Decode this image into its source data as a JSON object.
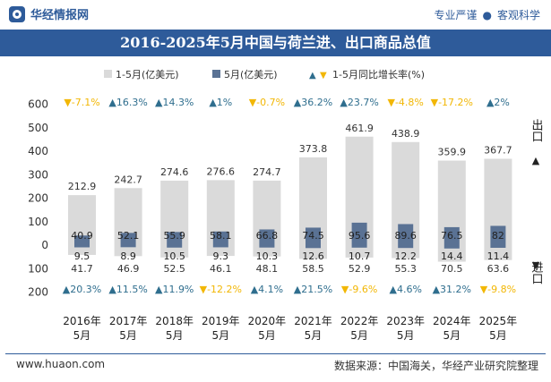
{
  "header": {
    "brand": "华经情报网",
    "slogan_a": "专业严谨",
    "slogan_sep": "●",
    "slogan_b": "客观科学"
  },
  "colors": {
    "brand_blue": "#2e5b9a",
    "cumulative_bar": "#dadada",
    "monthly_bar": "#5a7294",
    "up": "#2f6e8e",
    "down": "#f2b705"
  },
  "chart_data": {
    "type": "bar",
    "title": "2016-2025年5月中国与荷兰进、出口商品总值",
    "categories": [
      "2016年\n5月",
      "2017年\n5月",
      "2018年\n5月",
      "2019年\n5月",
      "2020年\n5月",
      "2021年\n5月",
      "2022年\n5月",
      "2023年\n5月",
      "2024年\n5月",
      "2025年\n5月"
    ],
    "legend": {
      "cumulative": "1-5月(亿美元)",
      "monthly": "5月(亿美元)",
      "growth": "1-5月同比增长率(%)"
    },
    "axis_labels": {
      "export": "出口",
      "import": "进口"
    },
    "y_ticks": [
      {
        "value": 600,
        "label": "600"
      },
      {
        "value": 500,
        "label": "500"
      },
      {
        "value": 400,
        "label": "400"
      },
      {
        "value": 300,
        "label": "300"
      },
      {
        "value": 200,
        "label": "200"
      },
      {
        "value": 100,
        "label": "100"
      },
      {
        "value": 0,
        "label": "0"
      },
      {
        "value": -100,
        "label": "100"
      },
      {
        "value": -200,
        "label": "200"
      }
    ],
    "ylim": [
      -200,
      600
    ],
    "series": [
      {
        "name": "出口 1-5月(亿美元)",
        "values": [
          212.9,
          242.7,
          274.6,
          276.6,
          274.7,
          373.8,
          461.9,
          438.9,
          359.9,
          367.7
        ]
      },
      {
        "name": "出口 5月(亿美元)",
        "values": [
          40.9,
          52.1,
          55.9,
          58.1,
          66.8,
          74.5,
          95.6,
          89.6,
          76.5,
          82
        ]
      },
      {
        "name": "进口 1-5月(亿美元)",
        "values": [
          41.7,
          46.9,
          52.5,
          46.1,
          48.1,
          58.5,
          52.9,
          55.3,
          70.5,
          63.6
        ]
      },
      {
        "name": "进口 5月(亿美元)",
        "values": [
          9.5,
          8.9,
          10.5,
          9.3,
          10.3,
          12.6,
          10.7,
          12.2,
          14.4,
          11.4
        ]
      },
      {
        "name": "出口 1-5月同比增长率(%)",
        "values": [
          -7.1,
          16.3,
          14.3,
          1,
          -0.7,
          36.2,
          23.7,
          -4.8,
          -17.2,
          2
        ]
      },
      {
        "name": "进口 1-5月同比增长率(%)",
        "values": [
          20.3,
          11.5,
          11.9,
          -12.2,
          4.1,
          21.5,
          -9.6,
          4.6,
          31.2,
          -9.8
        ]
      }
    ],
    "labels": {
      "export_total": [
        "212.9",
        "242.7",
        "274.6",
        "276.6",
        "274.7",
        "373.8",
        "461.9",
        "438.9",
        "359.9",
        "367.7"
      ],
      "export_month": [
        "40.9",
        "52.1",
        "55.9",
        "58.1",
        "66.8",
        "74.5",
        "95.6",
        "89.6",
        "76.5",
        "82"
      ],
      "import_total": [
        "41.7",
        "46.9",
        "52.5",
        "46.1",
        "48.1",
        "58.5",
        "52.9",
        "55.3",
        "70.5",
        "63.6"
      ],
      "import_month": [
        "9.5",
        "8.9",
        "10.5",
        "9.3",
        "10.3",
        "12.6",
        "10.7",
        "12.2",
        "14.4",
        "11.4"
      ],
      "export_growth": [
        "-7.1%",
        "16.3%",
        "14.3%",
        "1%",
        "-0.7%",
        "36.2%",
        "23.7%",
        "-4.8%",
        "-17.2%",
        "2%"
      ],
      "import_growth": [
        "20.3%",
        "11.5%",
        "11.9%",
        "-12.2%",
        "4.1%",
        "21.5%",
        "-9.6%",
        "4.6%",
        "31.2%",
        "-9.8%"
      ]
    },
    "grid": false
  },
  "footer": {
    "website": "www.huaon.com",
    "source": "数据来源：中国海关，华经产业研究院整理"
  }
}
